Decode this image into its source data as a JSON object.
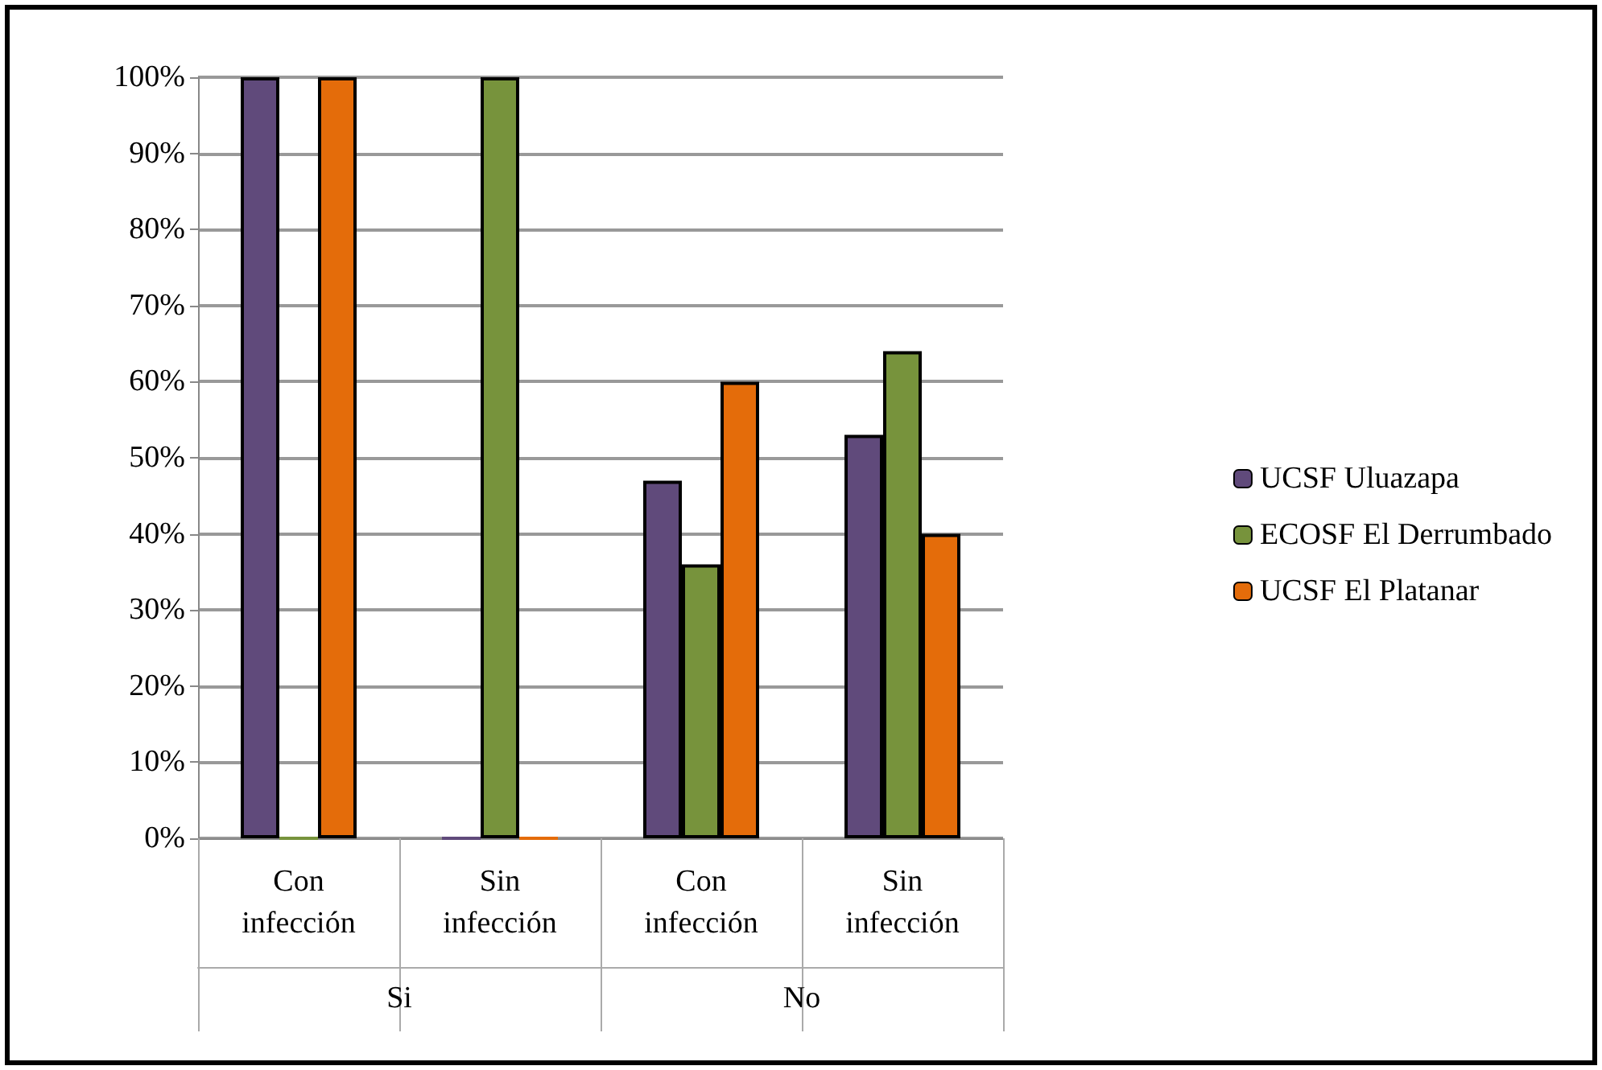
{
  "chart_data": {
    "type": "bar",
    "categories": [
      "Con infección",
      "Sin infección",
      "Con infección",
      "Sin infección"
    ],
    "annotations": [
      "Si",
      "No"
    ],
    "series": [
      {
        "name": "UCSF Uluazapa",
        "color": "#604a7b",
        "values": [
          100,
          0,
          47,
          53
        ]
      },
      {
        "name": "ECOSF El Derrumbado",
        "color": "#77933c",
        "values": [
          0,
          100,
          36,
          64
        ]
      },
      {
        "name": "UCSF El Platanar",
        "color": "#e46c0a",
        "values": [
          100,
          0,
          60,
          40
        ]
      }
    ],
    "ylim": [
      0,
      100
    ],
    "yticks": [
      {
        "value": 0,
        "label": "0%"
      },
      {
        "value": 10,
        "label": "10%"
      },
      {
        "value": 20,
        "label": "20%"
      },
      {
        "value": 30,
        "label": "30%"
      },
      {
        "value": 40,
        "label": "40%"
      },
      {
        "value": 50,
        "label": "50%"
      },
      {
        "value": 60,
        "label": "60%"
      },
      {
        "value": 70,
        "label": "70%"
      },
      {
        "value": 80,
        "label": "80%"
      },
      {
        "value": 90,
        "label": "90%"
      },
      {
        "value": 100,
        "label": "100%"
      }
    ],
    "grid": "y",
    "legend": "right"
  }
}
